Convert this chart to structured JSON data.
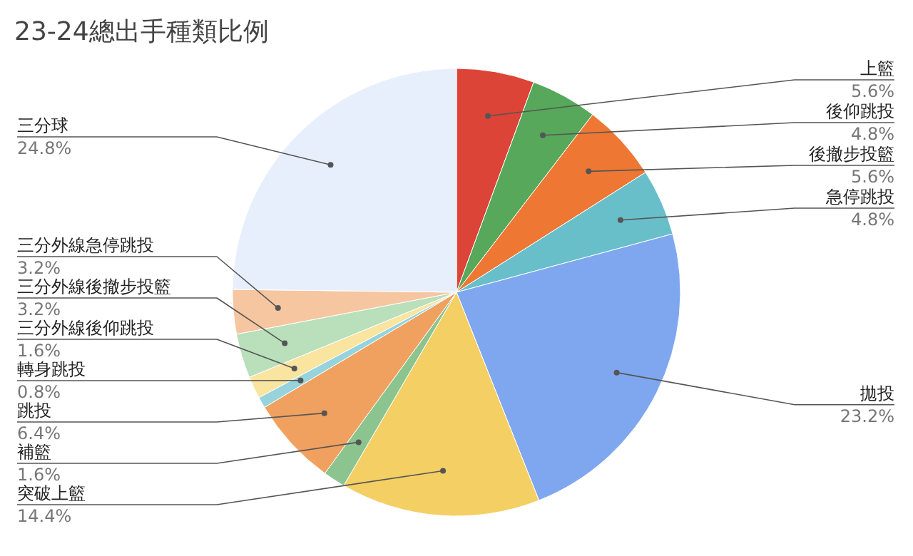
{
  "chart_data": {
    "type": "pie",
    "title": "23-24總出手種類比例",
    "categories": [
      "上籃",
      "後仰跳投",
      "後撤步投籃",
      "急停跳投",
      "拋投",
      "突破上籃",
      "補籃",
      "跳投",
      "轉身跳投",
      "三分外線後仰跳投",
      "三分外線後撤步投籃",
      "三分外線急停跳投",
      "三分球"
    ],
    "values": [
      5.6,
      4.8,
      5.6,
      4.8,
      23.2,
      14.4,
      1.6,
      6.4,
      0.8,
      1.6,
      3.2,
      3.2,
      24.8
    ],
    "value_labels": [
      "5.6%",
      "4.8%",
      "5.6%",
      "4.8%",
      "23.2%",
      "14.4%",
      "1.6%",
      "6.4%",
      "0.8%",
      "1.6%",
      "3.2%",
      "3.2%",
      "24.8%"
    ],
    "colors": [
      "#db4437",
      "#57a85a",
      "#ee7733",
      "#68bfc9",
      "#7fa7ef",
      "#f4cf64",
      "#8cc490",
      "#f0a15f",
      "#96d3dc",
      "#f9e4a0",
      "#b9dfbb",
      "#f6c6a0",
      "#e8effc"
    ]
  }
}
